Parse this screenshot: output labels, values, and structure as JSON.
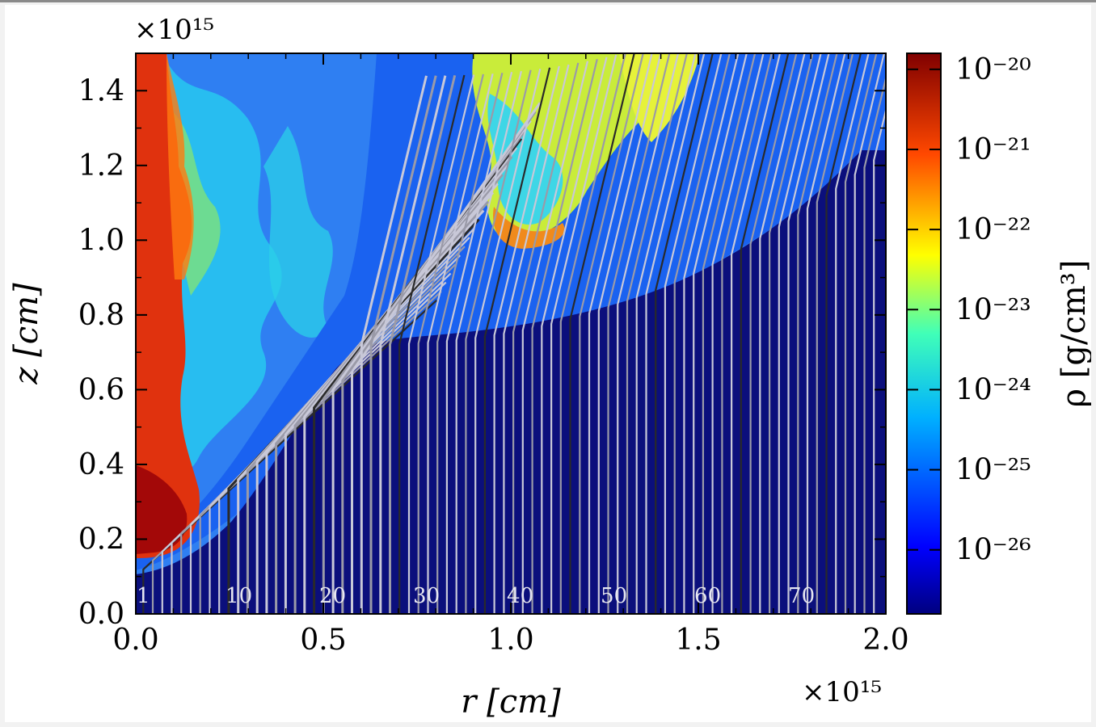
{
  "chart_data": {
    "type": "heatmap",
    "xlabel": "r [cm]",
    "ylabel": "z [cm]",
    "x_multiplier": "×10¹⁵",
    "y_multiplier": "×10¹⁵",
    "xlim": [
      0.0,
      2.0
    ],
    "ylim": [
      0.0,
      1.5
    ],
    "xticks": [
      "0.0",
      "0.5",
      "1.0",
      "1.5",
      "2.0"
    ],
    "yticks": [
      "0.0",
      "0.2",
      "0.4",
      "0.6",
      "0.8",
      "1.0",
      "1.2",
      "1.4"
    ],
    "colorbar": {
      "label": "ρ [g/cm³]",
      "scale": "log",
      "range": [
        -26.8,
        -19.8
      ],
      "tick_labels": [
        "10⁻²⁰",
        "10⁻²¹",
        "10⁻²²",
        "10⁻²³",
        "10⁻²⁴",
        "10⁻²⁵",
        "10⁻²⁶"
      ],
      "tick_exponents": [
        -20,
        -21,
        -22,
        -23,
        -24,
        -25,
        -26
      ],
      "colormap": "jet"
    },
    "streamline_labels": [
      "1",
      "10",
      "20",
      "30",
      "40",
      "50",
      "60",
      "70"
    ],
    "streamline_label_x": [
      0.02,
      0.275,
      0.525,
      0.775,
      1.025,
      1.275,
      1.525,
      1.775
    ],
    "region_colors": {
      "jet_axis": "#d02a10",
      "cocoon": "#3a8ef0",
      "shocked_cloud": "#c8e83a",
      "ambient": "#0a0c78",
      "shell": "#1660ee"
    }
  }
}
